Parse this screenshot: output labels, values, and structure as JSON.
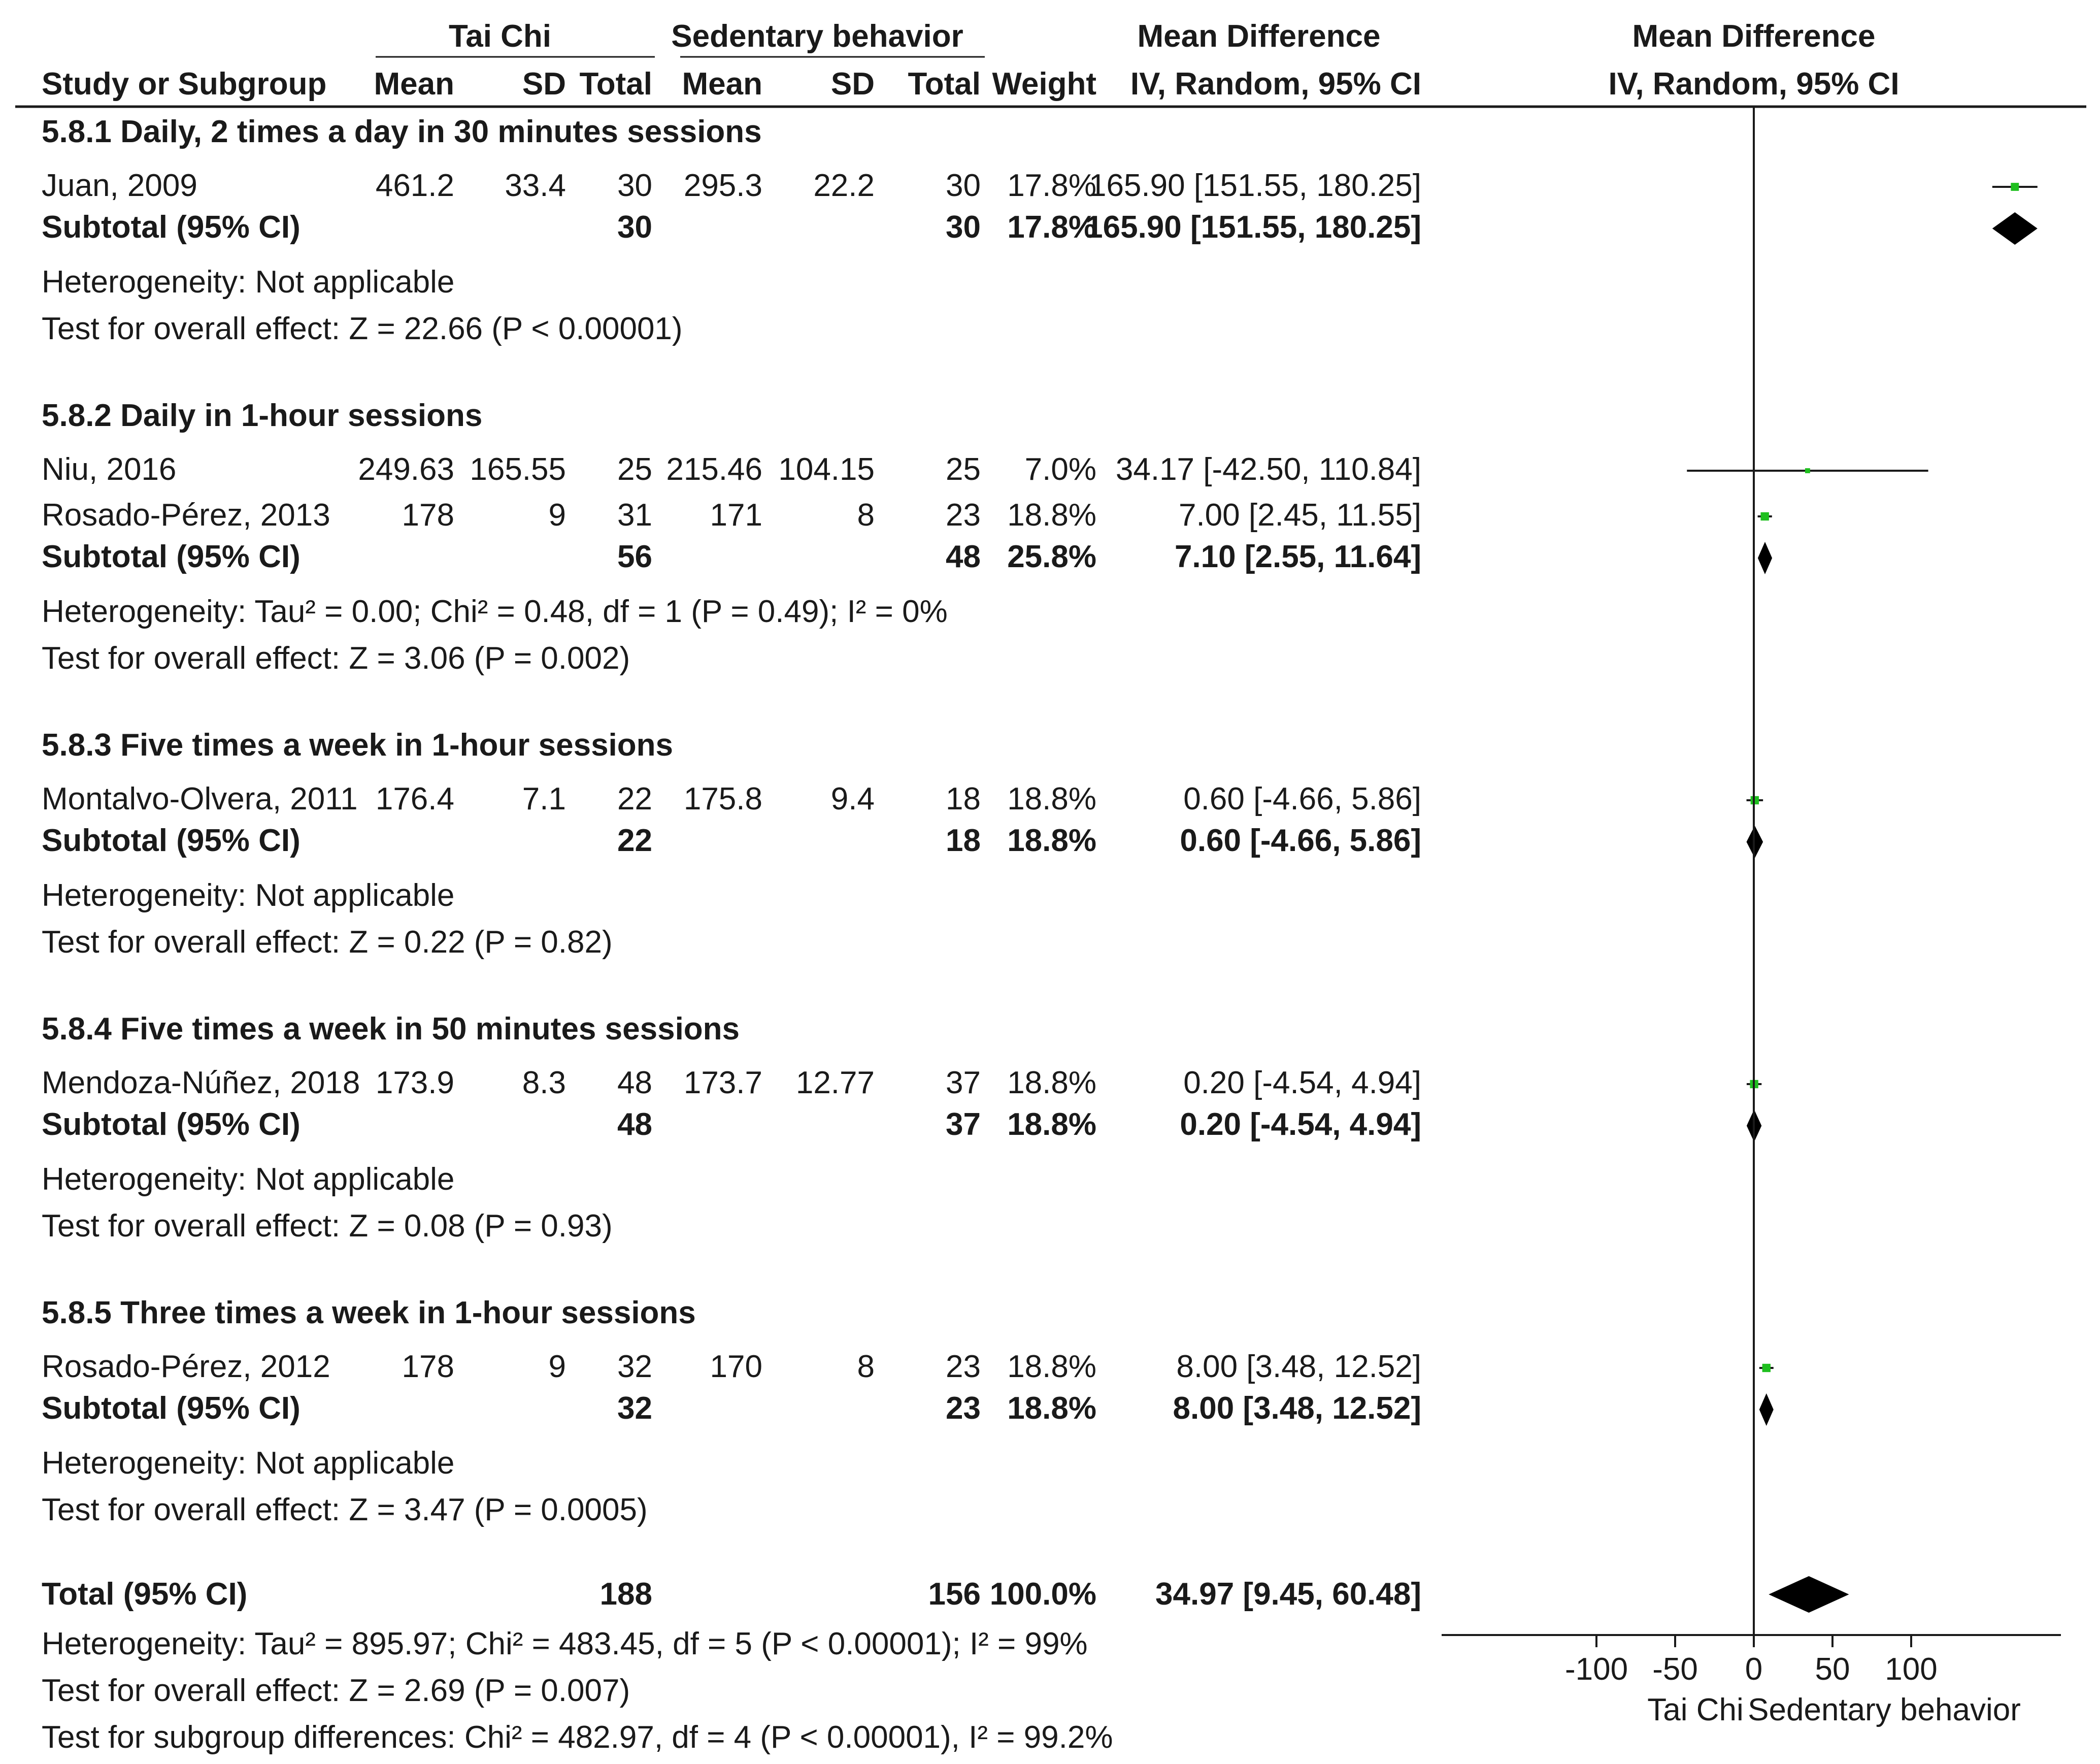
{
  "header": {
    "group1": "Tai Chi",
    "group2": "Sedentary behavior",
    "md_top": "Mean Difference",
    "md_top_plot": "Mean Difference",
    "study": "Study or Subgroup",
    "mean1": "Mean",
    "sd1": "SD",
    "total1": "Total",
    "mean2": "Mean",
    "sd2": "SD",
    "total2": "Total",
    "weight": "Weight",
    "md_method": "IV, Random, 95% CI",
    "md_method_plot": "IV, Random, 95% CI"
  },
  "subgroups": [
    {
      "title": "5.8.1 Daily, 2 times a day in 30 minutes sessions",
      "studies": [
        {
          "name": "Juan, 2009",
          "mean1": "461.2",
          "sd1": "33.4",
          "n1": "30",
          "mean2": "295.3",
          "sd2": "22.2",
          "n2": "30",
          "weight": "17.8%",
          "ci_text": "165.90 [151.55, 180.25]",
          "md": 165.9,
          "lo": 151.55,
          "hi": 180.25
        }
      ],
      "subtotal": {
        "label": "Subtotal (95% CI)",
        "n1": "30",
        "n2": "30",
        "weight": "17.8%",
        "ci_text": "165.90 [151.55, 180.25]",
        "md": 165.9,
        "lo": 151.55,
        "hi": 180.25
      },
      "heterogeneity": "Heterogeneity: Not applicable",
      "overall": "Test for overall effect: Z = 22.66 (P < 0.00001)"
    },
    {
      "title": "5.8.2 Daily in 1-hour sessions",
      "studies": [
        {
          "name": "Niu, 2016",
          "mean1": "249.63",
          "sd1": "165.55",
          "n1": "25",
          "mean2": "215.46",
          "sd2": "104.15",
          "n2": "25",
          "weight": "7.0%",
          "ci_text": "34.17 [-42.50, 110.84]",
          "md": 34.17,
          "lo": -42.5,
          "hi": 110.84
        },
        {
          "name": "Rosado-Pérez, 2013",
          "mean1": "178",
          "sd1": "9",
          "n1": "31",
          "mean2": "171",
          "sd2": "8",
          "n2": "23",
          "weight": "18.8%",
          "ci_text": "7.00 [2.45, 11.55]",
          "md": 7.0,
          "lo": 2.45,
          "hi": 11.55
        }
      ],
      "subtotal": {
        "label": "Subtotal (95% CI)",
        "n1": "56",
        "n2": "48",
        "weight": "25.8%",
        "ci_text": "7.10 [2.55, 11.64]",
        "md": 7.1,
        "lo": 2.55,
        "hi": 11.64
      },
      "heterogeneity": "Heterogeneity: Tau² = 0.00; Chi² = 0.48, df = 1 (P = 0.49); I² = 0%",
      "overall": "Test for overall effect: Z = 3.06 (P = 0.002)"
    },
    {
      "title": "5.8.3 Five times a week in 1-hour sessions",
      "studies": [
        {
          "name": "Montalvo-Olvera, 2011",
          "mean1": "176.4",
          "sd1": "7.1",
          "n1": "22",
          "mean2": "175.8",
          "sd2": "9.4",
          "n2": "18",
          "weight": "18.8%",
          "ci_text": "0.60 [-4.66, 5.86]",
          "md": 0.6,
          "lo": -4.66,
          "hi": 5.86
        }
      ],
      "subtotal": {
        "label": "Subtotal (95% CI)",
        "n1": "22",
        "n2": "18",
        "weight": "18.8%",
        "ci_text": "0.60 [-4.66, 5.86]",
        "md": 0.6,
        "lo": -4.66,
        "hi": 5.86
      },
      "heterogeneity": "Heterogeneity: Not applicable",
      "overall": "Test for overall effect: Z = 0.22 (P = 0.82)"
    },
    {
      "title": "5.8.4 Five times a week in 50 minutes sessions",
      "studies": [
        {
          "name": "Mendoza-Núñez, 2018",
          "mean1": "173.9",
          "sd1": "8.3",
          "n1": "48",
          "mean2": "173.7",
          "sd2": "12.77",
          "n2": "37",
          "weight": "18.8%",
          "ci_text": "0.20 [-4.54, 4.94]",
          "md": 0.2,
          "lo": -4.54,
          "hi": 4.94
        }
      ],
      "subtotal": {
        "label": "Subtotal (95% CI)",
        "n1": "48",
        "n2": "37",
        "weight": "18.8%",
        "ci_text": "0.20 [-4.54, 4.94]",
        "md": 0.2,
        "lo": -4.54,
        "hi": 4.94
      },
      "heterogeneity": "Heterogeneity: Not applicable",
      "overall": "Test for overall effect: Z = 0.08 (P = 0.93)"
    },
    {
      "title": "5.8.5 Three times a week in 1-hour sessions",
      "studies": [
        {
          "name": "Rosado-Pérez, 2012",
          "mean1": "178",
          "sd1": "9",
          "n1": "32",
          "mean2": "170",
          "sd2": "8",
          "n2": "23",
          "weight": "18.8%",
          "ci_text": "8.00 [3.48, 12.52]",
          "md": 8.0,
          "lo": 3.48,
          "hi": 12.52
        }
      ],
      "subtotal": {
        "label": "Subtotal (95% CI)",
        "n1": "32",
        "n2": "23",
        "weight": "18.8%",
        "ci_text": "8.00 [3.48, 12.52]",
        "md": 8.0,
        "lo": 3.48,
        "hi": 12.52
      },
      "heterogeneity": "Heterogeneity: Not applicable",
      "overall": "Test for overall effect: Z = 3.47 (P = 0.0005)"
    }
  ],
  "total": {
    "label": "Total (95% CI)",
    "n1": "188",
    "n2": "156",
    "weight": "100.0%",
    "ci_text": "34.97 [9.45, 60.48]",
    "md": 34.97,
    "lo": 9.45,
    "hi": 60.48
  },
  "total_heterogeneity": "Heterogeneity: Tau² = 895.97; Chi² = 483.45, df = 5 (P < 0.00001); I² = 99%",
  "total_overall": "Test for overall effect: Z = 2.69 (P = 0.007)",
  "subgroup_diff": "Test for subgroup differences: Chi² = 482.97, df = 4 (P < 0.00001), I² = 99.2%",
  "axis": {
    "ticks": [
      -100,
      -50,
      0,
      50,
      100
    ],
    "left_label": "Tai Chi",
    "right_label": "Sedentary behavior"
  },
  "colors": {
    "study_marker": "#1fbf1f",
    "diamond": "#000000",
    "text": "#1a1a1a"
  },
  "chart_data": {
    "type": "forest",
    "effect_measure": "Mean Difference, IV, Random, 95% CI",
    "series": [
      {
        "name": "Juan, 2009",
        "md": 165.9,
        "lo": 151.55,
        "hi": 180.25,
        "weight": 17.8
      },
      {
        "name": "Niu, 2016",
        "md": 34.17,
        "lo": -42.5,
        "hi": 110.84,
        "weight": 7.0
      },
      {
        "name": "Rosado-Pérez, 2013",
        "md": 7.0,
        "lo": 2.45,
        "hi": 11.55,
        "weight": 18.8
      },
      {
        "name": "Montalvo-Olvera, 2011",
        "md": 0.6,
        "lo": -4.66,
        "hi": 5.86,
        "weight": 18.8
      },
      {
        "name": "Mendoza-Núñez, 2018",
        "md": 0.2,
        "lo": -4.54,
        "hi": 4.94,
        "weight": 18.8
      },
      {
        "name": "Rosado-Pérez, 2012",
        "md": 8.0,
        "lo": 3.48,
        "hi": 12.52,
        "weight": 18.8
      }
    ],
    "pooled": {
      "md": 34.97,
      "lo": 9.45,
      "hi": 60.48
    },
    "xticks": [
      -100,
      -50,
      0,
      50,
      100
    ]
  }
}
